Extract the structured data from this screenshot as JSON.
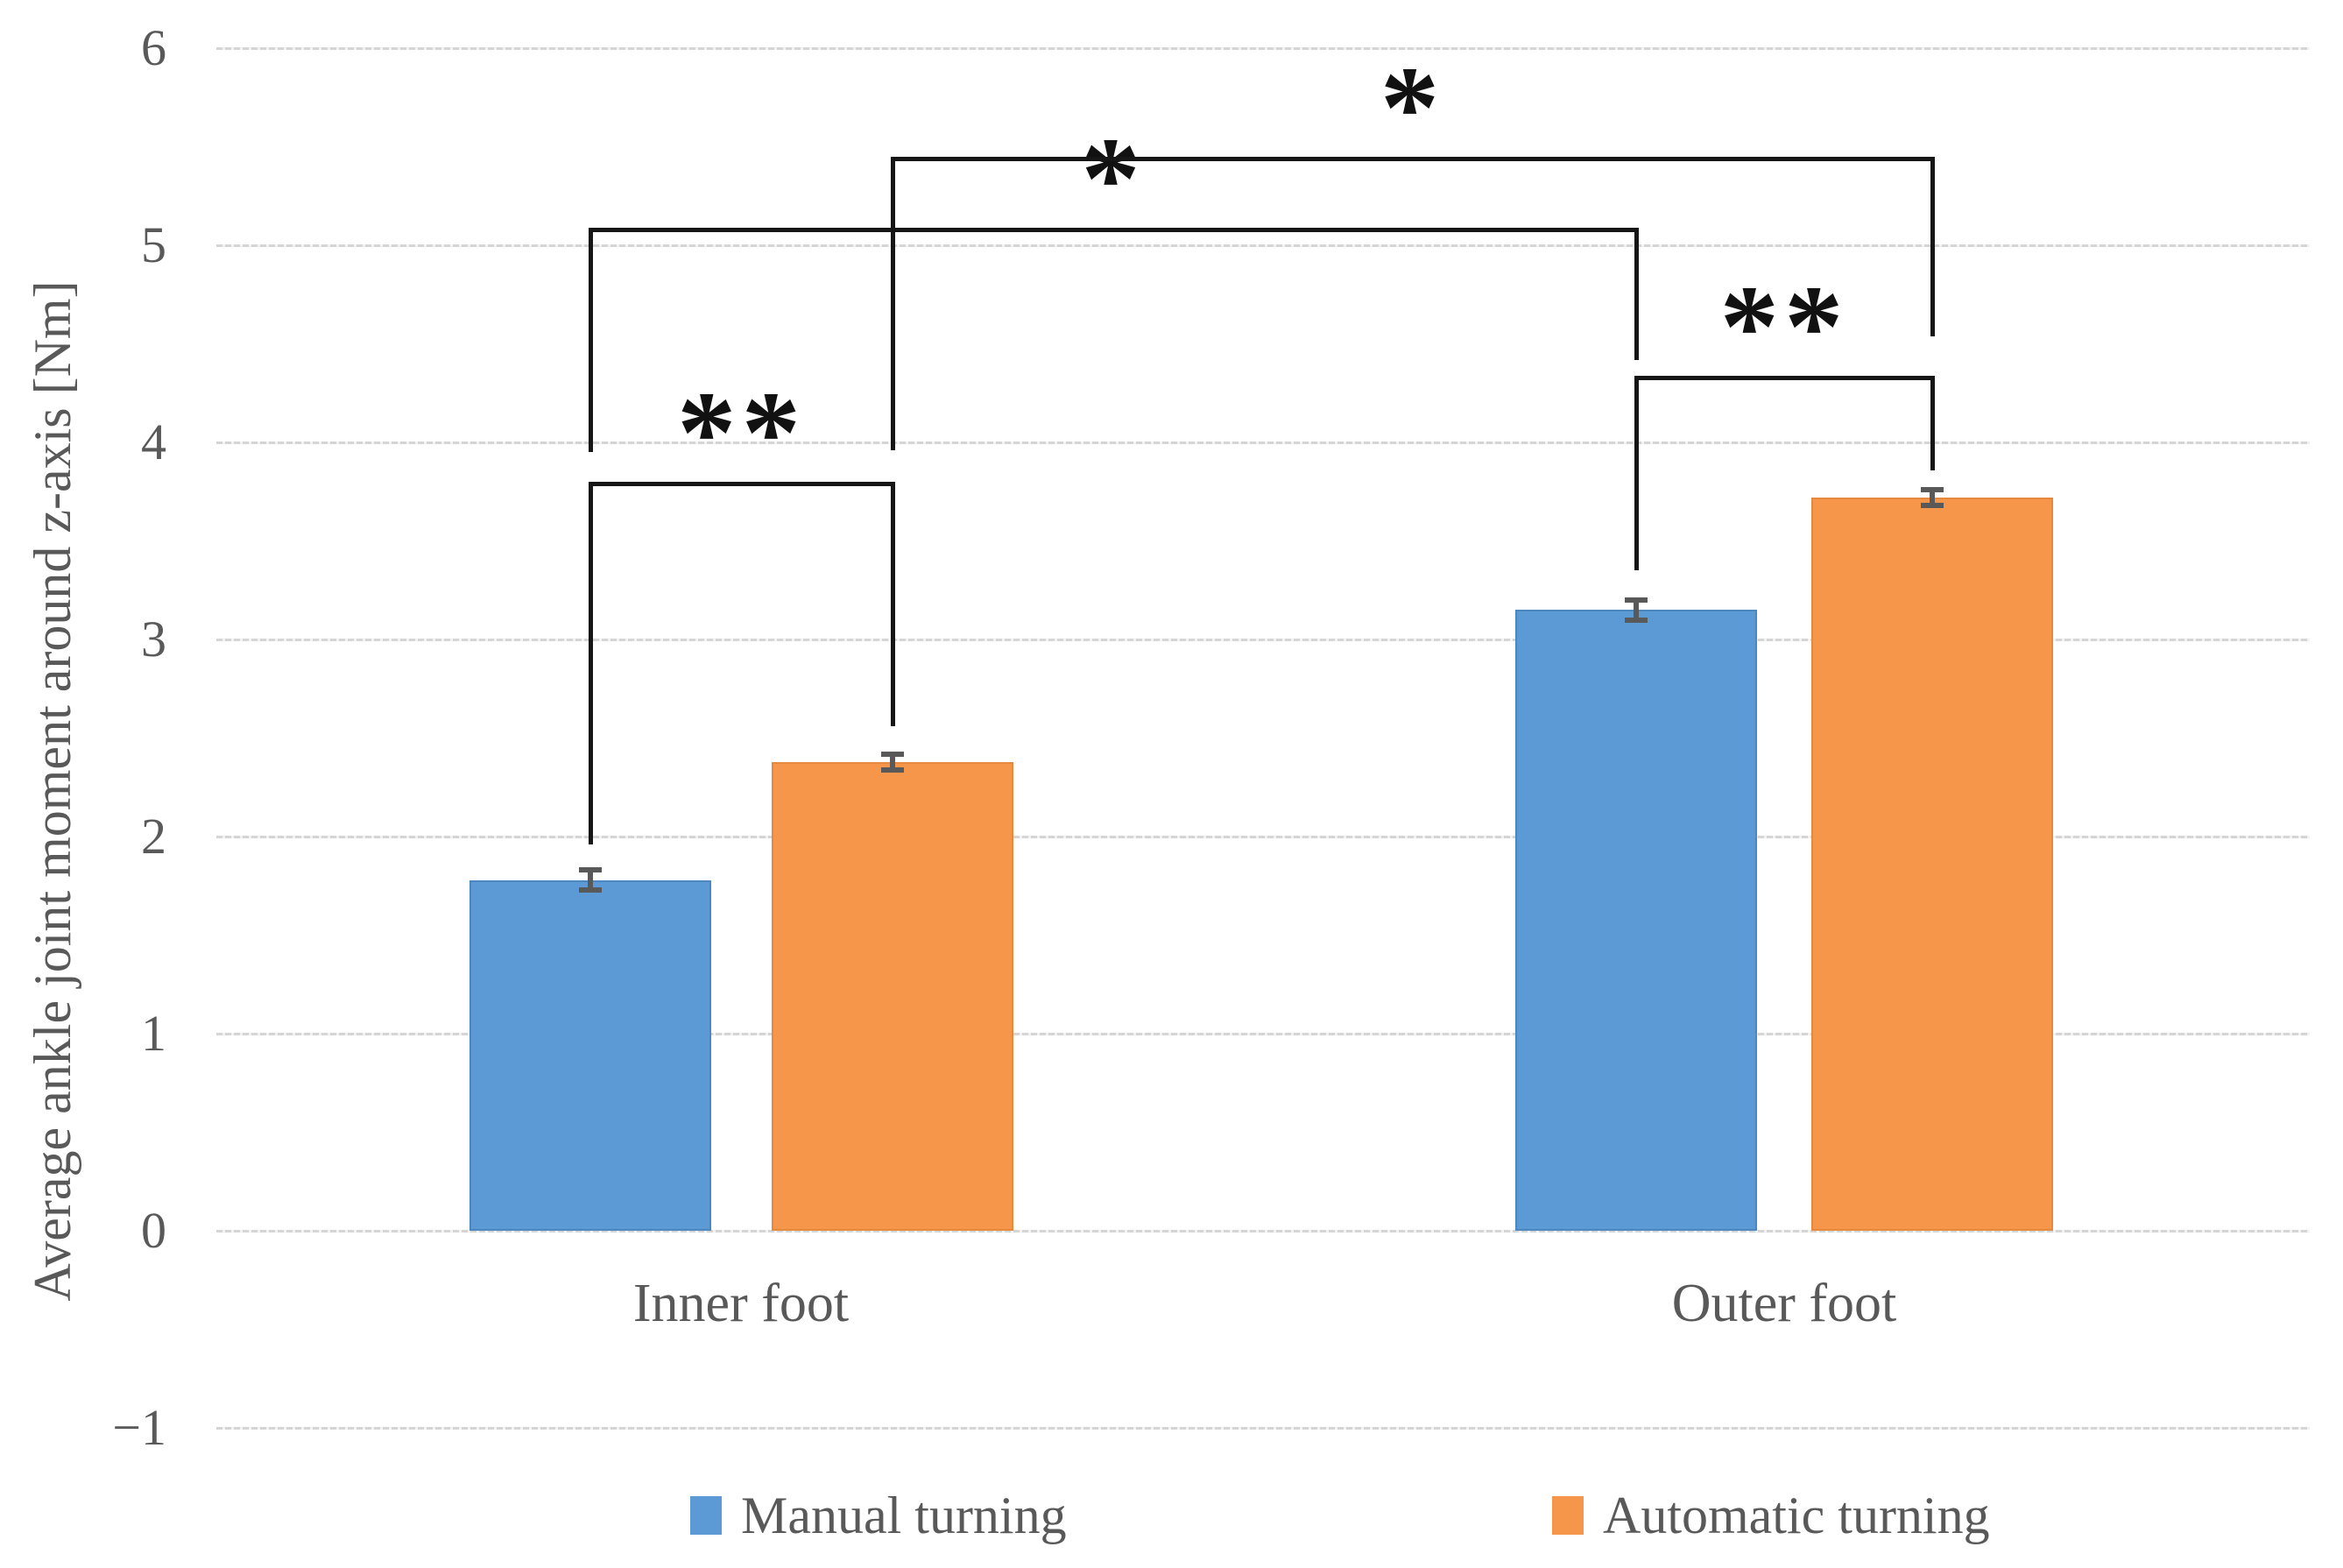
{
  "chart_data": {
    "type": "bar",
    "title": "",
    "xlabel": "",
    "ylabel": "Average ankle joint moment around z-axis [Nm]",
    "categories": [
      "Inner foot",
      "Outer foot"
    ],
    "series": [
      {
        "name": "Manual turning",
        "color": "#5B9AD5",
        "border_color": "#4d87bf",
        "values": [
          1.78,
          3.15
        ],
        "errors": [
          0.05,
          0.05
        ]
      },
      {
        "name": "Automatic turning",
        "color": "#F6964A",
        "border_color": "#e5893f",
        "values": [
          2.38,
          3.72
        ],
        "errors": [
          0.04,
          0.04
        ]
      }
    ],
    "ylim": [
      -1,
      6
    ],
    "yticks": [
      {
        "value": 6,
        "label": "6"
      },
      {
        "value": 5,
        "label": "5"
      },
      {
        "value": 4,
        "label": "4"
      },
      {
        "value": 3,
        "label": "3"
      },
      {
        "value": 2,
        "label": "2"
      },
      {
        "value": 1,
        "label": "1"
      },
      {
        "value": 0,
        "label": "0"
      },
      {
        "value": -1,
        "label": "−1"
      }
    ],
    "grid": true,
    "legend_position": "bottom",
    "significance_brackets": [
      {
        "label": "**",
        "comparison": "Inner foot Manual turning vs Inner foot Automatic turning",
        "from": [
          0,
          0
        ],
        "to": [
          0,
          1
        ],
        "bar_level": 3.79,
        "left_leg_bottom": 1.96,
        "right_leg_bottom": 2.56
      },
      {
        "label": "*",
        "comparison": "Inner foot Manual turning vs Outer foot Manual turning",
        "from": [
          0,
          0
        ],
        "to": [
          1,
          0
        ],
        "bar_level": 5.08,
        "left_leg_bottom": 3.95,
        "right_leg_bottom": 4.42
      },
      {
        "label": "*",
        "comparison": "Inner foot Automatic turning vs Outer foot Automatic turning",
        "from": [
          0,
          1
        ],
        "to": [
          1,
          1
        ],
        "bar_level": 5.44,
        "left_leg_bottom": 3.96,
        "right_leg_bottom": 4.54
      },
      {
        "label": "**",
        "comparison": "Outer foot Manual turning vs Outer foot Automatic turning",
        "from": [
          1,
          0
        ],
        "to": [
          1,
          1
        ],
        "bar_level": 4.33,
        "left_leg_bottom": 3.35,
        "right_leg_bottom": 3.86
      }
    ],
    "colors": {
      "gridline": "#D9D9D9",
      "error_bar": "#595959",
      "bracket": "#161616",
      "axis_text": "#595959"
    }
  }
}
